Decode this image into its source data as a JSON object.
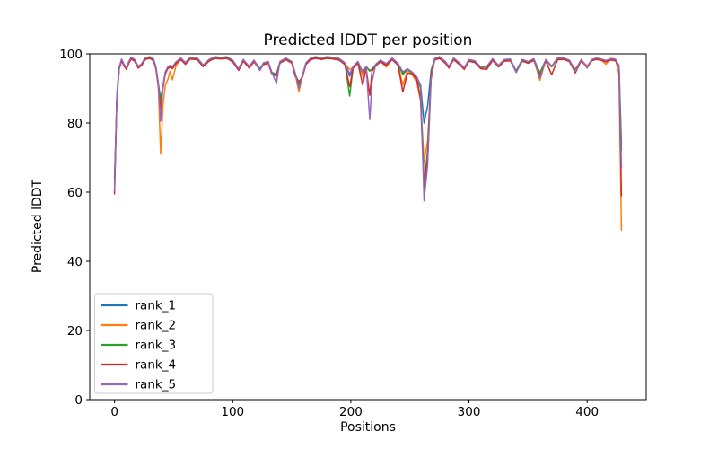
{
  "figure": {
    "background": "#ffffff",
    "spine_color": "#000000",
    "legend_border_color": "#cccccc"
  },
  "chart_data": {
    "type": "line",
    "title": "Predicted lDDT per position",
    "xlabel": "Positions",
    "ylabel": "Predicted lDDT",
    "xlim": [
      -21,
      450
    ],
    "ylim": [
      0,
      100
    ],
    "xticks": [
      0,
      100,
      200,
      300,
      400
    ],
    "yticks": [
      0,
      20,
      40,
      60,
      80,
      100
    ],
    "grid": false,
    "legend_position": "lower left",
    "x": [
      0,
      1,
      2,
      4,
      6,
      8,
      10,
      12,
      14,
      17,
      20,
      23,
      26,
      30,
      33,
      35,
      37,
      39,
      41,
      43,
      45,
      47,
      49,
      52,
      56,
      60,
      64,
      70,
      75,
      80,
      85,
      90,
      95,
      100,
      105,
      109,
      114,
      118,
      123,
      126,
      130,
      133,
      137,
      140,
      145,
      150,
      153,
      156,
      159,
      162,
      166,
      170,
      175,
      180,
      185,
      190,
      195,
      199,
      202,
      206,
      210,
      213,
      216,
      218,
      221,
      225,
      230,
      235,
      240,
      244,
      248,
      252,
      256,
      259,
      262,
      265,
      268,
      271,
      275,
      280,
      283,
      287,
      292,
      296,
      300,
      305,
      310,
      315,
      320,
      325,
      330,
      335,
      340,
      345,
      350,
      355,
      360,
      365,
      370,
      375,
      380,
      385,
      390,
      395,
      400,
      404,
      408,
      412,
      416,
      420,
      424,
      427,
      429
    ],
    "series": [
      {
        "name": "rank_1",
        "color": "#1f77b4",
        "values": [
          64,
          76,
          88.4,
          96.1,
          98.4,
          96.9,
          95.9,
          97.6,
          98.9,
          98.3,
          96.3,
          97.1,
          98.8,
          99.1,
          98.4,
          96.2,
          91.7,
          87,
          90.7,
          94.7,
          96.1,
          96.6,
          96.2,
          97.6,
          98.7,
          97.4,
          98.9,
          98.7,
          96.7,
          98.3,
          99.1,
          98.9,
          99.1,
          98.1,
          95.6,
          98.3,
          96.3,
          98.1,
          95.7,
          97.3,
          97.7,
          94.7,
          94.1,
          97.7,
          98.7,
          97.7,
          94.3,
          90.5,
          93.6,
          97.3,
          98.7,
          99.1,
          98.8,
          99.1,
          98.9,
          98.6,
          97.3,
          93.5,
          96.3,
          97.7,
          94.8,
          96.3,
          95.2,
          95.6,
          96.9,
          98.1,
          97.1,
          98.7,
          97.1,
          94.3,
          95.6,
          94.6,
          93.2,
          91,
          80,
          85,
          95.3,
          98.6,
          99.1,
          97.7,
          96.3,
          98.7,
          97.3,
          95.9,
          98.3,
          97.9,
          96.1,
          96.3,
          98.5,
          96.6,
          98.3,
          98.4,
          95.1,
          98.3,
          97.7,
          98.5,
          94.4,
          98.3,
          96.4,
          98.7,
          98.7,
          98.1,
          95.4,
          98.3,
          96.4,
          98.3,
          98.7,
          98.4,
          98,
          98.5,
          98.3,
          96.6,
          74
        ]
      },
      {
        "name": "rank_2",
        "color": "#ff7f0e",
        "values": [
          60,
          74.5,
          87.7,
          95.8,
          98.1,
          96.6,
          95.6,
          97.3,
          98.6,
          98,
          96,
          96.8,
          98.5,
          98.9,
          98.2,
          95.9,
          91.2,
          71,
          85,
          91,
          92.5,
          95,
          92.5,
          96.5,
          98.5,
          97.2,
          98.7,
          98.5,
          96.5,
          98.1,
          98.9,
          98.7,
          98.9,
          97.9,
          95.4,
          98.1,
          96.1,
          97.9,
          95.5,
          97.1,
          97.5,
          94.5,
          93.9,
          97.5,
          98.5,
          97.5,
          94.1,
          89,
          93.4,
          97.1,
          98.5,
          98.9,
          98.6,
          98.9,
          98.7,
          98.4,
          97.1,
          95.5,
          96.1,
          97.5,
          93.5,
          96.1,
          95,
          95.4,
          96.7,
          97.9,
          96.2,
          98.5,
          96.9,
          91,
          95.3,
          94,
          91.5,
          86.5,
          68.5,
          75,
          92.5,
          98.4,
          98.9,
          97.5,
          96.1,
          98.5,
          97.1,
          95.7,
          98.1,
          97.7,
          95.9,
          96.1,
          98.3,
          96.4,
          98.1,
          98.2,
          94.9,
          98.1,
          97.5,
          98.3,
          92.3,
          98.1,
          96.2,
          98.5,
          98.5,
          97.9,
          95.6,
          98.1,
          96.6,
          98.1,
          98.5,
          98.2,
          97,
          98.7,
          98.5,
          94,
          49
        ]
      },
      {
        "name": "rank_3",
        "color": "#2ca02c",
        "values": [
          62,
          75.5,
          88,
          96,
          98.3,
          96.8,
          95.8,
          97.5,
          98.8,
          98.2,
          96.2,
          97,
          98.7,
          99,
          98.3,
          96,
          91.5,
          86,
          90.5,
          94.5,
          96,
          96.5,
          96,
          97.5,
          98.6,
          97.3,
          98.8,
          98.6,
          96.6,
          98.2,
          99,
          98.8,
          99,
          98,
          95.5,
          98.2,
          96.2,
          98,
          95.6,
          97.2,
          97.6,
          94.6,
          93.8,
          97.6,
          98.6,
          97.6,
          94.2,
          91.5,
          93.5,
          97.2,
          98.6,
          99,
          98.7,
          99,
          98.8,
          98.5,
          97.2,
          87.8,
          96.2,
          97.6,
          94.5,
          96.2,
          95.1,
          95.5,
          96.8,
          98,
          97,
          98.6,
          97,
          94,
          95.5,
          94.5,
          93,
          90,
          62.5,
          72,
          95,
          98.5,
          99,
          97.6,
          96.2,
          98.6,
          97.2,
          95.8,
          98.2,
          97.8,
          96,
          96.2,
          98.4,
          96.5,
          98.2,
          98.3,
          95,
          98.2,
          97.6,
          98.4,
          94.6,
          98.2,
          96.3,
          98.6,
          98.6,
          98,
          95.3,
          98.2,
          95.9,
          98.2,
          98.6,
          98.3,
          97.9,
          98.4,
          98.2,
          96.4,
          72
        ]
      },
      {
        "name": "rank_4",
        "color": "#d62728",
        "values": [
          59.5,
          74,
          87.4,
          95.7,
          98,
          96.5,
          95.5,
          97.2,
          98.5,
          97.9,
          95.9,
          96.7,
          98.4,
          98.7,
          98,
          95.7,
          90.8,
          84,
          90.2,
          94.2,
          95.7,
          96.2,
          95.7,
          97.2,
          98.3,
          97,
          98.5,
          98.3,
          96.3,
          97.9,
          98.7,
          98.5,
          98.7,
          97.7,
          95.2,
          97.9,
          95.9,
          97.7,
          95.3,
          96.9,
          97.3,
          94.3,
          93.5,
          97.3,
          98.3,
          97.3,
          93.5,
          92,
          93.2,
          96.9,
          98.3,
          98.7,
          98.4,
          98.7,
          98.5,
          98.2,
          96.9,
          90.5,
          95.9,
          97.3,
          91,
          95.9,
          88,
          95.1,
          96.5,
          97.7,
          96.7,
          98.3,
          96.7,
          89,
          94.5,
          94.2,
          92.5,
          87,
          61,
          70,
          94.4,
          98.2,
          98.7,
          97.3,
          95.9,
          98.3,
          96.9,
          95.5,
          97.9,
          97.5,
          95.7,
          95.5,
          98.1,
          96.2,
          97.9,
          98,
          94.7,
          97.9,
          97.3,
          98.1,
          93.6,
          97.9,
          94,
          98.3,
          98.4,
          97.8,
          94.5,
          98,
          96.1,
          98,
          98.4,
          98.1,
          97.7,
          98.2,
          98,
          96.2,
          59
        ]
      },
      {
        "name": "rank_5",
        "color": "#9467bd",
        "values": [
          60.5,
          75.2,
          88.2,
          96.2,
          98.5,
          97,
          96,
          97.7,
          99,
          98.4,
          96.4,
          97.2,
          98.9,
          99.2,
          98.5,
          96.3,
          91.8,
          80.5,
          90.8,
          94.8,
          96.2,
          96.7,
          96.3,
          97.7,
          98.8,
          97.5,
          99,
          98.8,
          96.8,
          98.4,
          99.2,
          99,
          99.2,
          98.2,
          95.7,
          98.4,
          96.4,
          98.2,
          95.2,
          97.4,
          97.8,
          94.8,
          91.5,
          97.8,
          98.8,
          97.8,
          94.4,
          90,
          93.7,
          97.4,
          98.8,
          99.2,
          98.9,
          99.2,
          99,
          98.7,
          97.4,
          94.2,
          96.4,
          97.8,
          94.6,
          96.4,
          81,
          92,
          97,
          98.2,
          97.2,
          98.8,
          97.2,
          94.8,
          95.7,
          94.7,
          93.3,
          90.3,
          57.5,
          68,
          93,
          98.7,
          99.2,
          97.8,
          96.4,
          98.8,
          97.4,
          96,
          98.4,
          98,
          96.2,
          96.4,
          98.6,
          96.7,
          98.4,
          98.5,
          94.6,
          98.4,
          97.8,
          98.6,
          93,
          98.4,
          96.5,
          98.8,
          98.8,
          98.2,
          94.9,
          98.4,
          95.9,
          98.4,
          98.8,
          98.5,
          98.1,
          98.6,
          98.4,
          96.7,
          67
        ]
      }
    ]
  }
}
